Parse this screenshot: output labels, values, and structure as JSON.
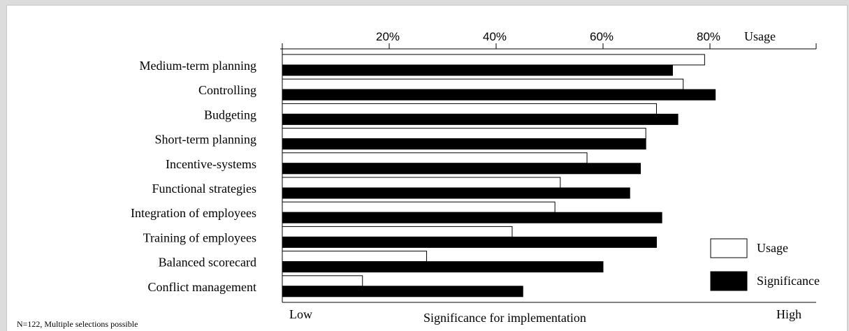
{
  "chart_data": {
    "type": "bar",
    "orientation": "horizontal",
    "categories": [
      "Medium-term planning",
      "Controlling",
      "Budgeting",
      "Short-term planning",
      "Incentive-systems",
      "Functional strategies",
      "Integration of employees",
      "Training of employees",
      "Balanced scorecard",
      "Conflict management"
    ],
    "series": [
      {
        "name": "Usage",
        "values": [
          79,
          75,
          70,
          68,
          57,
          52,
          51,
          43,
          27,
          15
        ],
        "color": "#ffffff"
      },
      {
        "name": "Significance",
        "values": [
          73,
          81,
          74,
          68,
          67,
          65,
          71,
          70,
          60,
          45
        ],
        "color": "#000000"
      }
    ],
    "top_axis": {
      "label": "Usage",
      "ticks": [
        "20%",
        "40%",
        "60%",
        "80%"
      ],
      "tick_values": [
        20,
        40,
        60,
        80
      ],
      "range": [
        0,
        100
      ]
    },
    "bottom_axis": {
      "label": "Significance for implementation",
      "low_label": "Low",
      "high_label": "High"
    },
    "legend": {
      "position": "bottom-right",
      "items": [
        "Usage",
        "Significance"
      ]
    },
    "footnote": "N=122, Multiple selections possible",
    "grid": false
  }
}
